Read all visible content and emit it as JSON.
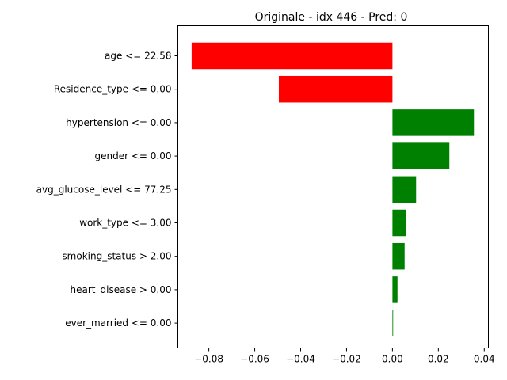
{
  "chart_data": {
    "type": "bar",
    "orientation": "horizontal",
    "title": "Originale - idx 446 - Pred: 0",
    "xlabel": "",
    "ylabel": "",
    "xlim": [
      -0.0935,
      0.0418
    ],
    "grid": false,
    "categories": [
      "age <= 22.58",
      "Residence_type <= 0.00",
      "hypertension <= 0.00",
      "gender <= 0.00",
      "avg_glucose_level <= 77.25",
      "work_type <= 3.00",
      "smoking_status > 2.00",
      "heart_disease > 0.00",
      "ever_married <= 0.00"
    ],
    "values": [
      -0.0875,
      -0.0495,
      0.0355,
      0.0248,
      0.0103,
      0.006,
      0.0053,
      0.0022,
      0.0003
    ],
    "xticks": [
      -0.08,
      -0.06,
      -0.04,
      -0.02,
      0.0,
      0.02,
      0.04
    ],
    "xtick_labels": [
      "−0.08",
      "−0.06",
      "−0.04",
      "−0.02",
      "0.00",
      "0.02",
      "0.04"
    ],
    "colors": {
      "negative": "#ff0000",
      "positive": "#008000",
      "axis": "#000000"
    }
  }
}
